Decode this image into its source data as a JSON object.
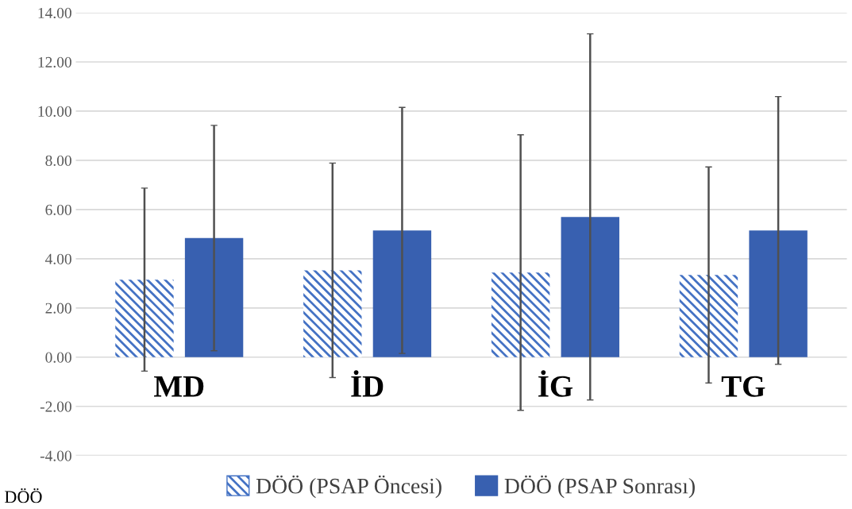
{
  "chart_data": {
    "type": "bar",
    "categories": [
      "MD",
      "İD",
      "İG",
      "TG"
    ],
    "series": [
      {
        "name": "DÖÖ (PSAP Öncesi)",
        "color": "#4472c4",
        "values": [
          3.15,
          3.53,
          3.44,
          3.34
        ],
        "errors": [
          3.72,
          4.36,
          5.6,
          4.39
        ]
      },
      {
        "name": "DÖÖ (PSAP Sonrası)",
        "color": "#3860b0",
        "values": [
          4.84,
          5.15,
          5.7,
          5.15
        ],
        "errors": [
          4.58,
          5.0,
          7.44,
          5.44
        ]
      }
    ],
    "ylim": [
      -4,
      14
    ],
    "yticks": [
      {
        "value": -4,
        "label": "-4.00"
      },
      {
        "value": -2,
        "label": "-2.00"
      },
      {
        "value": 0,
        "label": "0.00"
      },
      {
        "value": 2,
        "label": "2.00"
      },
      {
        "value": 4,
        "label": "4.00"
      },
      {
        "value": 6,
        "label": "6.00"
      },
      {
        "value": 8,
        "label": "8.00"
      },
      {
        "value": 10,
        "label": "10.00"
      },
      {
        "value": 12,
        "label": "12.00"
      },
      {
        "value": 14,
        "label": "14.00"
      }
    ],
    "grid": "y",
    "legend": "bottom",
    "annotations": [
      "DÖÖ"
    ]
  }
}
